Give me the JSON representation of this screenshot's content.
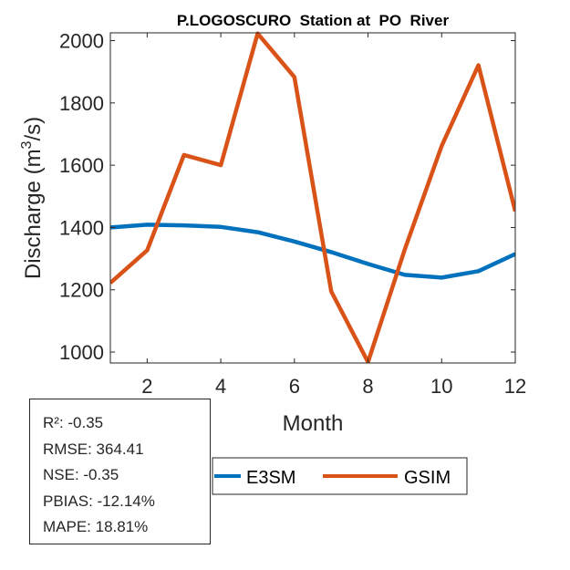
{
  "chart_data": {
    "type": "line",
    "title": "P.LOGOSCURO  Station at  PO  River",
    "xlabel": "Month",
    "ylabel_main": "Discharge (m",
    "ylabel_sup": "3",
    "ylabel_tail": "/s)",
    "xlim": [
      1,
      12
    ],
    "ylim": [
      965,
      2025
    ],
    "xticks": [
      2,
      4,
      6,
      8,
      10,
      12
    ],
    "yticks": [
      1000,
      1200,
      1400,
      1600,
      1800,
      2000
    ],
    "grid": false,
    "legend_position": "bottom-outside",
    "x": [
      1,
      2,
      3,
      4,
      5,
      6,
      7,
      8,
      9,
      10,
      11,
      12
    ],
    "series": [
      {
        "name": "E3SM",
        "color": "#0072BD",
        "values": [
          1400,
          1409,
          1407,
          1402,
          1385,
          1355,
          1321,
          1283,
          1248,
          1239,
          1260,
          1315
        ]
      },
      {
        "name": "GSIM",
        "color": "#D95319",
        "values": [
          1222,
          1327,
          1633,
          1600,
          2023,
          1883,
          1195,
          968,
          1330,
          1662,
          1921,
          1452
        ]
      }
    ]
  },
  "stats": [
    "R²: -0.35",
    "RMSE: 364.41",
    "NSE: -0.35",
    "PBIAS: -12.14%",
    "MAPE: 18.81%"
  ]
}
